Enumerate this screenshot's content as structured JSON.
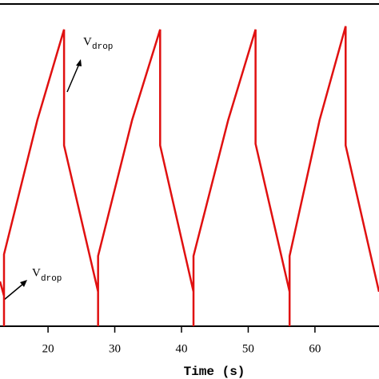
{
  "chart_data": {
    "type": "line",
    "xlabel": "Time (s)",
    "x": [
      12.8,
      13.4,
      13.4,
      13.4,
      18.4,
      22.4,
      22.4,
      27.5,
      27.5,
      27.5,
      32.6,
      36.8,
      36.8,
      41.8,
      41.8,
      41.8,
      47.0,
      51.1,
      51.1,
      56.2,
      56.2,
      56.2,
      60.7,
      64.6,
      64.6,
      69.6
    ],
    "series": [
      {
        "color": "#e01010",
        "values": [
          13.9,
          9.4,
          0,
          22.3,
          64.0,
          92.1,
          56.1,
          10.7,
          0,
          21.8,
          64.0,
          92.1,
          56.1,
          10.7,
          0,
          21.8,
          64.0,
          92.1,
          56.6,
          10.7,
          0,
          21.8,
          64.0,
          93.1,
          56.1,
          10.7
        ]
      }
    ],
    "xlim": [
      12.8,
      69.6
    ],
    "xticks": [
      20,
      30,
      40,
      50,
      60
    ],
    "ylim": [
      0,
      100
    ],
    "annotations": [
      {
        "text": "V",
        "sub": "drop"
      },
      {
        "text": "V",
        "sub": "drop"
      }
    ]
  }
}
